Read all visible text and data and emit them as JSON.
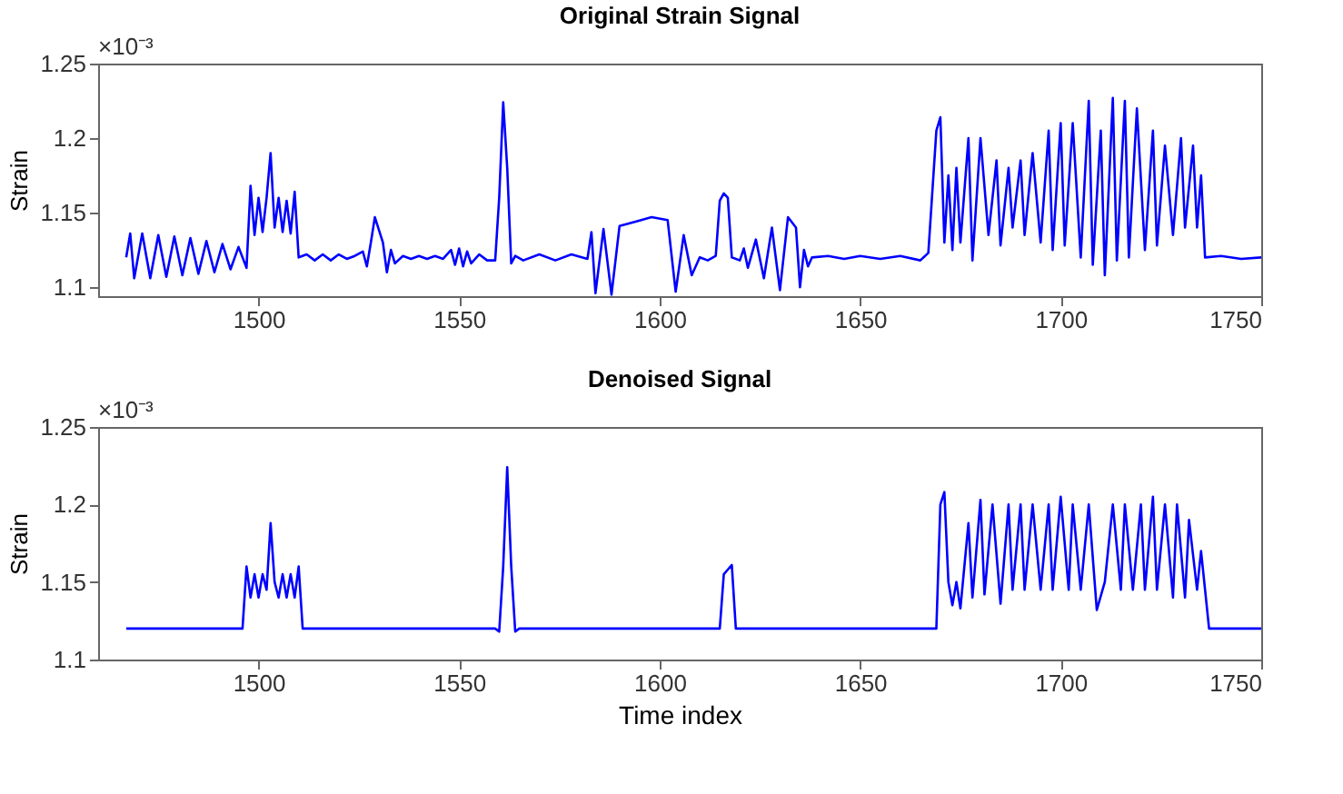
{
  "chart_data": [
    {
      "type": "line",
      "title": "Original Strain Signal",
      "ylabel": "Strain",
      "annotations": [
        "×10⁻³"
      ],
      "xlim": [
        1460,
        1750
      ],
      "ylim": [
        1.094,
        1.25
      ],
      "xticks": [
        1500,
        1550,
        1600,
        1650,
        1700,
        1750
      ],
      "yticks": [
        1.1,
        1.15,
        1.2,
        1.25
      ],
      "grid": false,
      "x": [
        1467,
        1468,
        1469,
        1471,
        1473,
        1475,
        1477,
        1479,
        1481,
        1483,
        1485,
        1487,
        1489,
        1491,
        1493,
        1495,
        1497,
        1498,
        1499,
        1500,
        1501,
        1502,
        1503,
        1504,
        1505,
        1506,
        1507,
        1508,
        1509,
        1510,
        1512,
        1514,
        1516,
        1518,
        1520,
        1522,
        1524,
        1526,
        1527,
        1528,
        1529,
        1530,
        1531,
        1532,
        1533,
        1534,
        1536,
        1538,
        1540,
        1542,
        1544,
        1546,
        1548,
        1549,
        1550,
        1551,
        1552,
        1553,
        1555,
        1557,
        1559,
        1560,
        1561,
        1562,
        1563,
        1564,
        1566,
        1570,
        1574,
        1578,
        1582,
        1583,
        1584,
        1586,
        1588,
        1590,
        1592,
        1594,
        1596,
        1598,
        1600,
        1602,
        1604,
        1606,
        1608,
        1610,
        1612,
        1614,
        1615,
        1616,
        1617,
        1618,
        1620,
        1621,
        1622,
        1624,
        1626,
        1628,
        1630,
        1632,
        1633,
        1634,
        1635,
        1636,
        1637,
        1638,
        1642,
        1646,
        1650,
        1655,
        1660,
        1665,
        1667,
        1669,
        1670,
        1671,
        1672,
        1673,
        1674,
        1675,
        1677,
        1678,
        1680,
        1682,
        1684,
        1685,
        1687,
        1688,
        1690,
        1691,
        1693,
        1695,
        1697,
        1698,
        1700,
        1701,
        1703,
        1705,
        1707,
        1708,
        1710,
        1711,
        1713,
        1714,
        1716,
        1717,
        1719,
        1721,
        1723,
        1724,
        1726,
        1728,
        1730,
        1731,
        1733,
        1734,
        1735,
        1736,
        1740,
        1745,
        1750
      ],
      "series": [
        {
          "color": "#0000ff",
          "values": [
            1.12,
            1.136,
            1.106,
            1.136,
            1.106,
            1.135,
            1.107,
            1.134,
            1.108,
            1.133,
            1.109,
            1.131,
            1.11,
            1.129,
            1.112,
            1.127,
            1.113,
            1.168,
            1.135,
            1.16,
            1.137,
            1.16,
            1.19,
            1.14,
            1.16,
            1.137,
            1.158,
            1.136,
            1.164,
            1.12,
            1.122,
            1.118,
            1.122,
            1.118,
            1.122,
            1.119,
            1.121,
            1.124,
            1.114,
            1.13,
            1.147,
            null,
            1.13,
            1.11,
            1.125,
            1.116,
            1.121,
            1.119,
            1.121,
            1.119,
            1.121,
            1.119,
            1.125,
            1.115,
            1.126,
            1.114,
            1.124,
            1.116,
            1.122,
            1.118,
            1.118,
            1.16,
            1.224,
            1.18,
            1.116,
            1.121,
            1.118,
            1.122,
            1.118,
            1.122,
            1.119,
            1.137,
            1.096,
            1.139,
            1.095,
            1.141,
            null,
            1.144,
            null,
            1.147,
            null,
            1.145,
            1.097,
            1.135,
            1.108,
            1.12,
            1.118,
            1.121,
            1.158,
            1.163,
            1.16,
            1.12,
            1.118,
            1.126,
            1.113,
            1.132,
            1.106,
            1.14,
            1.098,
            1.147,
            null,
            1.14,
            1.1,
            1.125,
            1.114,
            1.12,
            1.121,
            1.119,
            1.121,
            1.119,
            1.121,
            1.118,
            1.123,
            1.205,
            1.214,
            1.13,
            1.175,
            1.125,
            1.18,
            1.13,
            1.2,
            1.118,
            1.2,
            1.135,
            1.185,
            1.128,
            1.18,
            1.14,
            1.185,
            1.135,
            1.19,
            1.13,
            1.205,
            1.125,
            1.21,
            1.128,
            1.21,
            1.12,
            1.225,
            1.115,
            1.205,
            1.108,
            1.227,
            1.118,
            1.225,
            1.12,
            1.22,
            1.125,
            1.205,
            1.128,
            1.195,
            1.135,
            1.2,
            1.14,
            1.195,
            1.14,
            1.175,
            1.12,
            1.121,
            1.119,
            1.12
          ]
        }
      ]
    },
    {
      "type": "line",
      "title": "Denoised Signal",
      "xlabel": "Time index",
      "ylabel": "Strain",
      "annotations": [
        "×10⁻³"
      ],
      "xlim": [
        1460,
        1750
      ],
      "ylim": [
        1.1,
        1.25
      ],
      "xticks": [
        1500,
        1550,
        1600,
        1650,
        1700,
        1750
      ],
      "yticks": [
        1.1,
        1.15,
        1.2,
        1.25
      ],
      "grid": false,
      "x": [
        1467,
        1496,
        1497,
        1498,
        1499,
        1500,
        1501,
        1502,
        1503,
        1504,
        1505,
        1506,
        1507,
        1508,
        1509,
        1510,
        1511,
        1559,
        1560,
        1561,
        1562,
        1563,
        1564,
        1565,
        1615,
        1616,
        1617,
        1618,
        1619,
        1669,
        1670,
        1671,
        1672,
        1673,
        1674,
        1675,
        1677,
        1678,
        1680,
        1681,
        1683,
        1685,
        1687,
        1688,
        1690,
        1691,
        1693,
        1695,
        1697,
        1698,
        1700,
        1702,
        1703,
        1705,
        1707,
        1709,
        1711,
        1713,
        1715,
        1716,
        1718,
        1720,
        1721,
        1723,
        1724,
        1726,
        1728,
        1729,
        1731,
        1732,
        1734,
        1735,
        1737,
        1750
      ],
      "series": [
        {
          "color": "#0000ff",
          "values": [
            1.12,
            1.12,
            1.16,
            1.14,
            1.155,
            1.14,
            1.155,
            1.145,
            1.188,
            1.15,
            1.14,
            1.155,
            1.14,
            1.155,
            1.14,
            1.16,
            1.12,
            1.12,
            1.118,
            1.16,
            1.224,
            1.16,
            1.118,
            1.12,
            1.12,
            1.155,
            1.158,
            1.161,
            1.12,
            1.12,
            1.2,
            1.208,
            1.15,
            1.135,
            1.15,
            1.133,
            1.188,
            1.14,
            1.203,
            1.142,
            1.2,
            1.136,
            1.2,
            1.145,
            1.2,
            1.145,
            1.2,
            1.145,
            1.2,
            1.145,
            1.205,
            1.145,
            1.2,
            1.145,
            1.2,
            1.132,
            1.15,
            1.2,
            1.145,
            1.2,
            1.145,
            1.2,
            1.145,
            1.205,
            1.145,
            1.2,
            1.14,
            1.2,
            1.14,
            1.19,
            1.145,
            1.17,
            1.12,
            1.12
          ]
        }
      ]
    }
  ]
}
